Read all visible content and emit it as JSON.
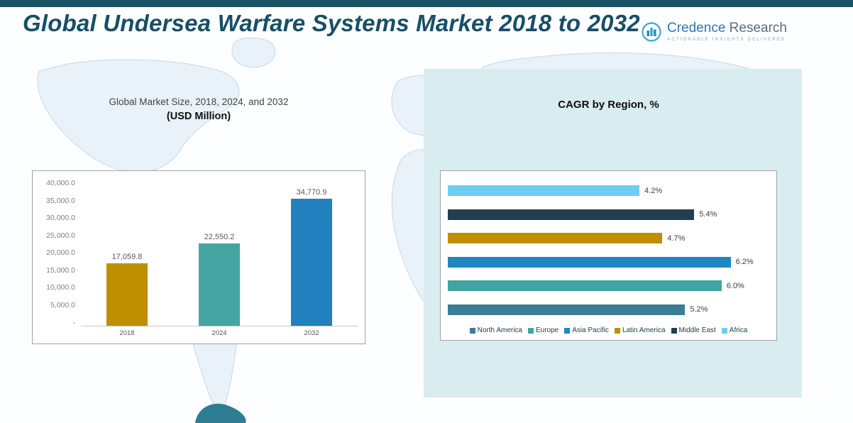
{
  "header": {
    "title": "Global Undersea Warfare Systems Market 2018 to 2032",
    "logo": {
      "brand_primary": "Credence",
      "brand_secondary": "Research",
      "tagline": "Actionable Insights Delivered"
    },
    "accent_color": "#1B5565"
  },
  "left_chart": {
    "title": "Global Market Size, 2018, 2024, and 2032",
    "subtitle": "(USD Million)"
  },
  "right_chart": {
    "title": "CAGR by Region, %"
  },
  "chart_data": [
    {
      "type": "bar",
      "title": "Global Market Size, 2018, 2024, and 2032 (USD Million)",
      "categories": [
        "2018",
        "2024",
        "2032"
      ],
      "values": [
        17059.8,
        22550.2,
        34770.9
      ],
      "value_labels": [
        "17,059.8",
        "22,550.2",
        "34,770.9"
      ],
      "bar_colors": [
        "#BE8F00",
        "#45A5A3",
        "#2280BE"
      ],
      "ylim": [
        0,
        40000
      ],
      "ytick_labels": [
        "40,000.0",
        "35,000.0",
        "30,000.0",
        "25,000.0",
        "20,000.0",
        "15,000.0",
        "10,000.0",
        "5,000.0",
        "-"
      ],
      "grid": false,
      "legend_position": "none"
    },
    {
      "type": "bar",
      "orientation": "horizontal",
      "title": "CAGR by Region, %",
      "rows_top_to_bottom": [
        {
          "region": "Africa",
          "value": 4.2,
          "label": "4.2%",
          "color": "#6FCDF1"
        },
        {
          "region": "Middle East",
          "value": 5.4,
          "label": "5.4%",
          "color": "#21404F"
        },
        {
          "region": "Latin America",
          "value": 4.7,
          "label": "4.7%",
          "color": "#BE8F00"
        },
        {
          "region": "Asia Pacific",
          "value": 6.2,
          "label": "6.2%",
          "color": "#1E87C3"
        },
        {
          "region": "Europe",
          "value": 6.0,
          "label": "6.0%",
          "color": "#41A3A3"
        },
        {
          "region": "North America",
          "value": 5.2,
          "label": "5.2%",
          "color": "#3B7D96"
        }
      ],
      "legend_order": [
        "North America",
        "Europe",
        "Asia Pacific",
        "Latin America",
        "Middle East",
        "Africa"
      ],
      "legend_position": "bottom",
      "xlim": [
        0,
        6.5
      ],
      "grid": false
    }
  ]
}
